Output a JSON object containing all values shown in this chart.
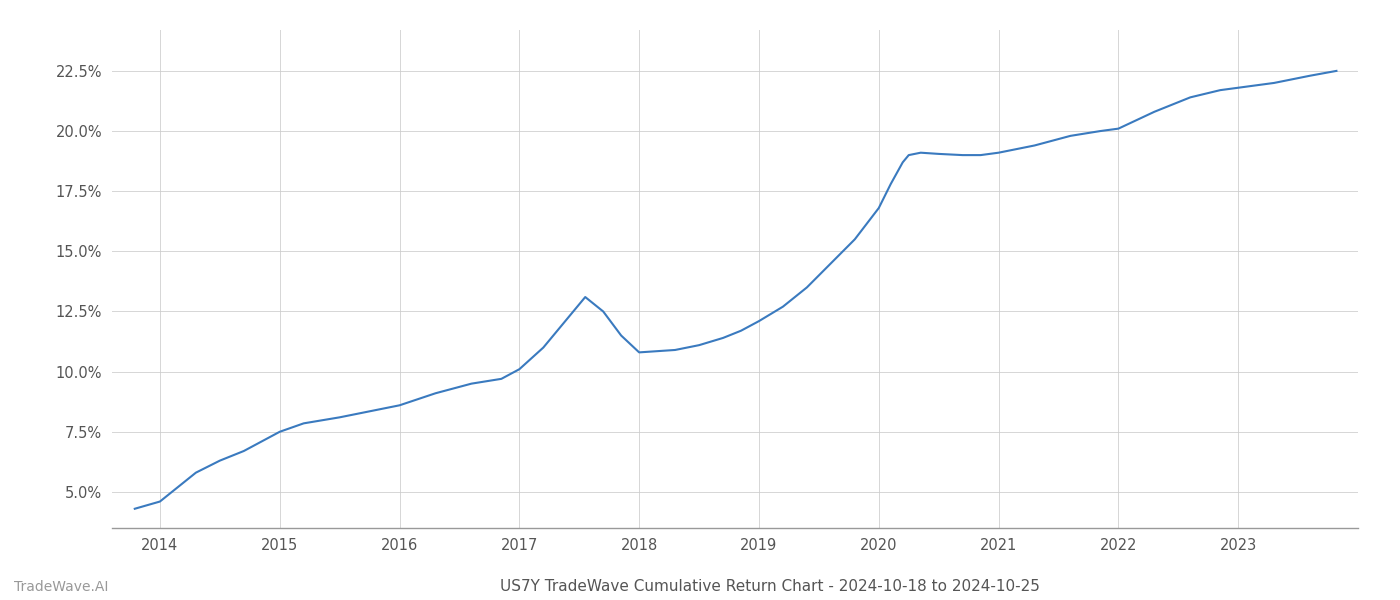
{
  "title": "US7Y TradeWave Cumulative Return Chart - 2024-10-18 to 2024-10-25",
  "background_color": "#ffffff",
  "line_color": "#3a7abf",
  "line_width": 1.5,
  "watermark_left": "TradeWave.AI",
  "x_years": [
    2014,
    2015,
    2016,
    2017,
    2018,
    2019,
    2020,
    2021,
    2022,
    2023
  ],
  "data_x": [
    2013.79,
    2014.0,
    2014.15,
    2014.3,
    2014.5,
    2014.7,
    2014.85,
    2015.0,
    2015.2,
    2015.5,
    2015.8,
    2016.0,
    2016.3,
    2016.6,
    2016.85,
    2017.0,
    2017.2,
    2017.4,
    2017.55,
    2017.7,
    2017.85,
    2018.0,
    2018.15,
    2018.3,
    2018.5,
    2018.7,
    2018.85,
    2019.0,
    2019.2,
    2019.4,
    2019.6,
    2019.8,
    2020.0,
    2020.1,
    2020.2,
    2020.25,
    2020.35,
    2020.5,
    2020.7,
    2020.85,
    2021.0,
    2021.3,
    2021.6,
    2021.85,
    2022.0,
    2022.3,
    2022.6,
    2022.85,
    2023.0,
    2023.3,
    2023.6,
    2023.82
  ],
  "data_y": [
    4.3,
    4.6,
    5.2,
    5.8,
    6.3,
    6.7,
    7.1,
    7.5,
    7.85,
    8.1,
    8.4,
    8.6,
    9.1,
    9.5,
    9.7,
    10.1,
    11.0,
    12.2,
    13.1,
    12.5,
    11.5,
    10.8,
    10.85,
    10.9,
    11.1,
    11.4,
    11.7,
    12.1,
    12.7,
    13.5,
    14.5,
    15.5,
    16.8,
    17.8,
    18.7,
    19.0,
    19.1,
    19.05,
    19.0,
    19.0,
    19.1,
    19.4,
    19.8,
    20.0,
    20.1,
    20.8,
    21.4,
    21.7,
    21.8,
    22.0,
    22.3,
    22.5
  ],
  "ylim_min": 3.5,
  "ylim_max": 24.2,
  "xlim_min": 2013.6,
  "xlim_max": 2024.0,
  "yticks": [
    5.0,
    7.5,
    10.0,
    12.5,
    15.0,
    17.5,
    20.0,
    22.5
  ],
  "grid_color": "#cccccc",
  "grid_alpha": 0.8,
  "title_fontsize": 11,
  "tick_fontsize": 10.5,
  "watermark_fontsize": 10
}
